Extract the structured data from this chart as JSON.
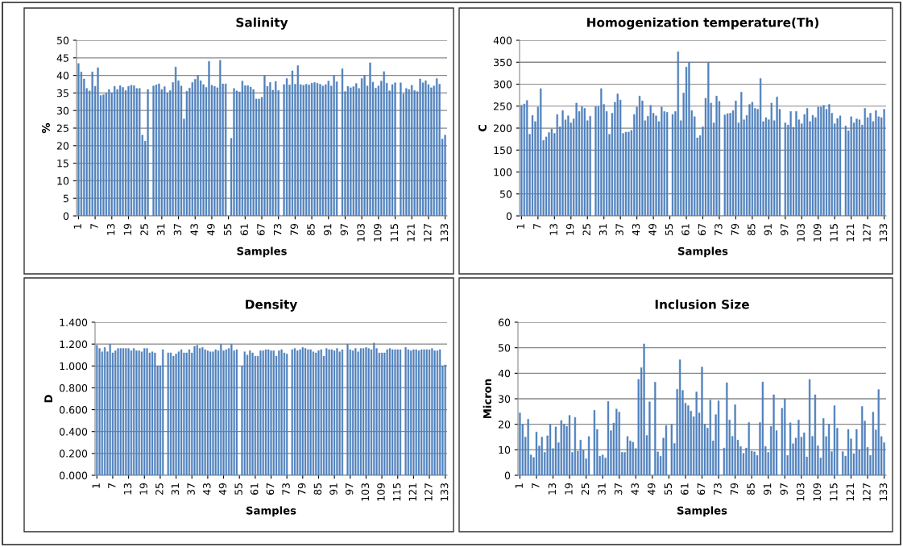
{
  "chart_data": [
    {
      "type": "bar",
      "title": "Salinity",
      "xlabel": "Samples",
      "ylabel": "%",
      "color": "#4f81bd",
      "grid": "y",
      "ylim": [
        0,
        50
      ],
      "yticks": [
        0,
        5,
        10,
        15,
        20,
        25,
        30,
        35,
        40,
        45,
        50
      ],
      "categories": [
        "1",
        null,
        null,
        null,
        null,
        null,
        "7",
        null,
        null,
        null,
        null,
        null,
        "13",
        null,
        null,
        null,
        null,
        null,
        "19",
        null,
        null,
        null,
        null,
        null,
        "25",
        null,
        null,
        null,
        null,
        null,
        "31",
        null,
        null,
        null,
        null,
        null,
        "37",
        null,
        null,
        null,
        null,
        null,
        "43",
        null,
        null,
        null,
        null,
        null,
        "49",
        null,
        null,
        null,
        null,
        null,
        "55",
        null,
        null,
        null,
        null,
        null,
        "61",
        null,
        null,
        null,
        null,
        null,
        "67",
        null,
        null,
        null,
        null,
        null,
        "73",
        null,
        null,
        null,
        null,
        null,
        "79",
        null,
        null,
        null,
        null,
        null,
        "85",
        null,
        null,
        null,
        null,
        null,
        "91",
        null,
        null,
        null,
        null,
        null,
        "97",
        null,
        null,
        null,
        null,
        null,
        "103",
        null,
        null,
        null,
        null,
        null,
        "109",
        null,
        null,
        null,
        null,
        null,
        "115",
        null,
        null,
        null,
        null,
        null,
        "121",
        null,
        null,
        null,
        null,
        null,
        "127",
        null,
        null,
        null,
        null,
        null,
        "133"
      ],
      "values": [
        43.4,
        41,
        39,
        36.3,
        35.6,
        41,
        36.9,
        42.2,
        34.3,
        34.5,
        35,
        36,
        35,
        36.9,
        36,
        37.1,
        36.6,
        35.7,
        36.9,
        37.2,
        37.1,
        36.3,
        36.3,
        23,
        21.3,
        36,
        null,
        37,
        37.3,
        37.6,
        36,
        36.8,
        35,
        35.7,
        38,
        42.4,
        38.5,
        37,
        27.6,
        35.5,
        36.4,
        38,
        38.9,
        40,
        38.5,
        37.4,
        36.6,
        44,
        37.2,
        36.9,
        36.5,
        44.3,
        37.6,
        37.6,
        null,
        22.1,
        36.3,
        35.6,
        35.3,
        38.4,
        37.1,
        37.1,
        36.7,
        36,
        33.3,
        33.3,
        33.8,
        40,
        36.9,
        38,
        35.8,
        38.3,
        35.7,
        null,
        37.4,
        39.1,
        37.3,
        41.3,
        37.5,
        42.8,
        37.4,
        37.2,
        37.5,
        37.3,
        37.8,
        38,
        37.8,
        37.5,
        37,
        37.4,
        38.4,
        37,
        40,
        38.2,
        null,
        41.9,
        35.4,
        36.9,
        36.5,
        36.8,
        37.7,
        36.3,
        39.1,
        40,
        37,
        43.6,
        38.1,
        36.4,
        37,
        38.4,
        41.1,
        37.8,
        35.6,
        37.4,
        37.9,
        null,
        37.9,
        34.7,
        36.3,
        36,
        37.2,
        35.7,
        35.4,
        39,
        37.9,
        38.5,
        37.4,
        36.5,
        37,
        39.1,
        37.5,
        21.9,
        23
      ]
    },
    {
      "type": "bar",
      "title": "Homogenization temperature(Th)",
      "xlabel": "Samples",
      "ylabel": "C",
      "color": "#4f81bd",
      "grid": "y",
      "ylim": [
        0,
        400
      ],
      "yticks": [
        0,
        50,
        100,
        150,
        200,
        250,
        300,
        350,
        400
      ],
      "categories": [
        "1",
        null,
        null,
        null,
        null,
        null,
        "7",
        null,
        null,
        null,
        null,
        null,
        "13",
        null,
        null,
        null,
        null,
        null,
        "19",
        null,
        null,
        null,
        null,
        null,
        "25",
        null,
        null,
        null,
        null,
        null,
        "31",
        null,
        null,
        null,
        null,
        null,
        "37",
        null,
        null,
        null,
        null,
        null,
        "43",
        null,
        null,
        null,
        null,
        null,
        "49",
        null,
        null,
        null,
        null,
        null,
        "55",
        null,
        null,
        null,
        null,
        null,
        "61",
        null,
        null,
        null,
        null,
        null,
        "67",
        null,
        null,
        null,
        null,
        null,
        "73",
        null,
        null,
        null,
        null,
        null,
        "79",
        null,
        null,
        null,
        null,
        null,
        "85",
        null,
        null,
        null,
        null,
        null,
        "91",
        null,
        null,
        null,
        null,
        null,
        "97",
        null,
        null,
        null,
        null,
        null,
        "103",
        null,
        null,
        null,
        null,
        null,
        "109",
        null,
        null,
        null,
        null,
        null,
        "115",
        null,
        null,
        null,
        null,
        null,
        "121",
        null,
        null,
        null,
        null,
        null,
        "127",
        null,
        null,
        null,
        null,
        null,
        "133"
      ],
      "values": [
        252,
        255,
        263,
        186,
        229,
        215,
        248,
        290,
        172,
        180,
        190,
        198,
        188,
        231,
        203,
        240,
        219,
        228,
        212,
        221,
        257,
        238,
        249,
        245,
        217,
        227,
        null,
        249,
        249,
        290,
        254,
        238,
        186,
        234,
        259,
        278,
        264,
        188,
        191,
        191,
        195,
        231,
        248,
        273,
        262,
        217,
        227,
        252,
        234,
        228,
        215,
        248,
        238,
        236,
        null,
        231,
        238,
        374,
        217,
        280,
        339,
        350,
        240,
        226,
        178,
        183,
        203,
        268,
        350,
        257,
        212,
        273,
        261,
        null,
        230,
        233,
        234,
        240,
        262,
        212,
        282,
        219,
        229,
        254,
        259,
        245,
        243,
        313,
        215,
        224,
        219,
        257,
        217,
        271,
        243,
        null,
        212,
        207,
        238,
        202,
        238,
        219,
        210,
        231,
        245,
        215,
        229,
        224,
        248,
        248,
        252,
        243,
        254,
        234,
        210,
        222,
        228,
        null,
        205,
        194,
        226,
        212,
        221,
        219,
        207,
        245,
        224,
        234,
        215,
        240,
        226,
        224,
        243
      ]
    },
    {
      "type": "bar",
      "title": "Density",
      "xlabel": "Samples",
      "ylabel": "D",
      "color": "#4f81bd",
      "grid": "y",
      "ylim": [
        0,
        1.4
      ],
      "yticks": [
        {
          "value": 0,
          "label": "0.000"
        },
        {
          "value": 0.2,
          "label": "0.200"
        },
        {
          "value": 0.4,
          "label": "0.400"
        },
        {
          "value": 0.6,
          "label": "0.600"
        },
        {
          "value": 0.8,
          "label": "0.800"
        },
        {
          "value": 1.0,
          "label": "1.000"
        },
        {
          "value": 1.2,
          "label": "1.200"
        },
        {
          "value": 1.4,
          "label": "1.400"
        }
      ],
      "categories": [
        "1",
        null,
        null,
        null,
        null,
        null,
        "7",
        null,
        null,
        null,
        null,
        null,
        "13",
        null,
        null,
        null,
        null,
        null,
        "19",
        null,
        null,
        null,
        null,
        null,
        "25",
        null,
        null,
        null,
        null,
        null,
        "31",
        null,
        null,
        null,
        null,
        null,
        "37",
        null,
        null,
        null,
        null,
        null,
        "43",
        null,
        null,
        null,
        null,
        null,
        "49",
        null,
        null,
        null,
        null,
        null,
        "55",
        null,
        null,
        null,
        null,
        null,
        "61",
        null,
        null,
        null,
        null,
        null,
        "67",
        null,
        null,
        null,
        null,
        null,
        "73",
        null,
        null,
        null,
        null,
        null,
        "79",
        null,
        null,
        null,
        null,
        null,
        "85",
        null,
        null,
        null,
        null,
        null,
        "91",
        null,
        null,
        null,
        null,
        null,
        "97",
        null,
        null,
        null,
        null,
        null,
        "103",
        null,
        null,
        null,
        null,
        null,
        "109",
        null,
        null,
        null,
        null,
        null,
        "115",
        null,
        null,
        null,
        null,
        null,
        "121",
        null,
        null,
        null,
        null,
        null,
        "127",
        null,
        null,
        null,
        null,
        null,
        "133"
      ],
      "values": [
        1.19,
        1.16,
        1.13,
        1.17,
        1.13,
        1.2,
        1.12,
        1.14,
        1.16,
        1.16,
        1.16,
        1.16,
        1.16,
        1.14,
        1.16,
        1.14,
        1.14,
        1.13,
        1.16,
        1.16,
        1.12,
        1.13,
        1.12,
        1.0,
        1.0,
        1.15,
        null,
        1.12,
        1.12,
        1.09,
        1.11,
        1.13,
        1.15,
        1.12,
        1.12,
        1.15,
        1.12,
        1.18,
        1.19,
        1.16,
        1.17,
        1.15,
        1.14,
        1.13,
        1.13,
        1.15,
        1.14,
        1.2,
        1.14,
        1.15,
        1.16,
        1.2,
        1.14,
        1.15,
        null,
        1.0,
        1.13,
        1.1,
        1.14,
        1.12,
        1.09,
        1.09,
        1.14,
        1.14,
        1.15,
        1.15,
        1.14,
        1.14,
        1.09,
        1.14,
        1.15,
        1.12,
        1.11,
        null,
        1.15,
        1.16,
        1.14,
        1.15,
        1.17,
        1.16,
        1.15,
        1.15,
        1.13,
        1.12,
        1.14,
        1.15,
        1.09,
        1.16,
        1.15,
        1.15,
        1.14,
        1.16,
        1.13,
        1.15,
        null,
        1.2,
        1.15,
        1.14,
        1.16,
        1.13,
        1.16,
        1.16,
        1.17,
        1.16,
        1.15,
        1.21,
        1.16,
        1.12,
        1.12,
        1.12,
        1.15,
        1.16,
        1.15,
        1.15,
        1.15,
        1.15,
        null,
        1.17,
        1.15,
        1.14,
        1.15,
        1.15,
        1.14,
        1.15,
        1.15,
        1.15,
        1.15,
        1.16,
        1.14,
        1.14,
        1.15,
        1.0,
        1.01
      ]
    },
    {
      "type": "bar",
      "title": "Inclusion Size",
      "xlabel": "Samples",
      "ylabel": "Micron",
      "color": "#4f81bd",
      "grid": "y",
      "ylim": [
        0,
        60
      ],
      "yticks": [
        0,
        10,
        20,
        30,
        40,
        50,
        60
      ],
      "categories": [
        "1",
        null,
        null,
        null,
        null,
        null,
        "7",
        null,
        null,
        null,
        null,
        null,
        "13",
        null,
        null,
        null,
        null,
        null,
        "19",
        null,
        null,
        null,
        null,
        null,
        "25",
        null,
        null,
        null,
        null,
        null,
        "31",
        null,
        null,
        null,
        null,
        null,
        "37",
        null,
        null,
        null,
        null,
        null,
        "43",
        null,
        null,
        null,
        null,
        null,
        "49",
        null,
        null,
        null,
        null,
        null,
        "55",
        null,
        null,
        null,
        null,
        null,
        "61",
        null,
        null,
        null,
        null,
        null,
        "67",
        null,
        null,
        null,
        null,
        null,
        "73",
        null,
        null,
        null,
        null,
        null,
        "79",
        null,
        null,
        null,
        null,
        null,
        "85",
        null,
        null,
        null,
        null,
        null,
        "91",
        null,
        null,
        null,
        null,
        null,
        "97",
        null,
        null,
        null,
        null,
        null,
        "103",
        null,
        null,
        null,
        null,
        null,
        "109",
        null,
        null,
        null,
        null,
        null,
        "115",
        null,
        null,
        null,
        null,
        null,
        "121",
        null,
        null,
        null,
        null,
        null,
        "127",
        null,
        null,
        null,
        null,
        null,
        "133"
      ],
      "values": [
        24.5,
        20,
        15,
        22,
        8,
        7,
        17,
        11.5,
        15,
        9,
        15.5,
        20,
        10.5,
        19,
        12.8,
        21.5,
        20,
        19.2,
        23.5,
        9,
        22.7,
        9.5,
        13.8,
        10,
        6.5,
        15.2,
        null,
        25.5,
        18,
        7.5,
        8,
        6.8,
        29,
        17.5,
        20.5,
        26,
        24.8,
        9,
        9,
        15.2,
        13.5,
        13,
        10.5,
        37.6,
        42.2,
        51.5,
        15.6,
        28.8,
        null,
        36.5,
        9.2,
        7.5,
        14.6,
        19.5,
        null,
        20,
        12.5,
        33.7,
        45.3,
        33.3,
        28.3,
        27.3,
        25.2,
        23,
        32.7,
        24.5,
        42.5,
        20,
        18.5,
        29.5,
        13.5,
        23.8,
        29.2,
        null,
        10.7,
        36.3,
        21.7,
        15.3,
        27.7,
        13.8,
        11.3,
        8.6,
        10.7,
        20.7,
        9.5,
        9.2,
        7.8,
        20.7,
        36.6,
        11.3,
        9,
        19.2,
        31.6,
        17.5,
        null,
        26.3,
        30,
        7.8,
        20.6,
        12.4,
        14.6,
        21.7,
        15,
        16.7,
        7.2,
        37.6,
        15.3,
        31.6,
        11.6,
        6.8,
        22.3,
        15.2,
        20,
        9.3,
        27.3,
        18.5,
        null,
        9.3,
        7.5,
        18,
        14.3,
        8.5,
        18,
        10,
        27,
        21.3,
        11,
        7.8,
        24.8,
        17.8,
        33.6,
        15.2,
        12.8
      ]
    }
  ]
}
